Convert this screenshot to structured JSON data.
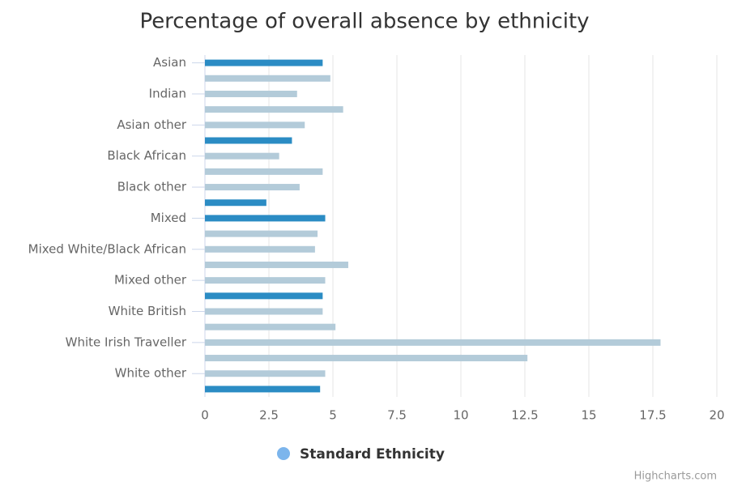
{
  "chart_data": {
    "type": "bar",
    "orientation": "horizontal",
    "title": "Percentage of overall absence by ethnicity",
    "categories": [
      "Asian",
      null,
      "Indian",
      null,
      "Asian other",
      null,
      "Black African",
      null,
      "Black other",
      null,
      "Mixed",
      null,
      "Mixed White/Black African",
      null,
      "Mixed other",
      null,
      "White British",
      null,
      "White Irish Traveller",
      null,
      "White other",
      null
    ],
    "series": [
      {
        "name": "Standard Ethnicity",
        "color": "#7cb5ec",
        "colors": [
          "#2b8cc4",
          "#b3cbd9",
          "#b3cbd9",
          "#b3cbd9",
          "#b3cbd9",
          "#2b8cc4",
          "#b3cbd9",
          "#b3cbd9",
          "#b3cbd9",
          "#2b8cc4",
          "#2b8cc4",
          "#b3cbd9",
          "#b3cbd9",
          "#b3cbd9",
          "#b3cbd9",
          "#2b8cc4",
          "#b3cbd9",
          "#b3cbd9",
          "#b3cbd9",
          "#b3cbd9",
          "#b3cbd9",
          "#2b8cc4"
        ],
        "values": [
          4.6,
          4.9,
          3.6,
          5.4,
          3.9,
          3.4,
          2.9,
          4.6,
          3.7,
          2.4,
          4.7,
          4.4,
          4.3,
          5.6,
          4.7,
          4.6,
          4.6,
          5.1,
          17.8,
          12.6,
          4.7,
          4.5
        ]
      }
    ],
    "xlim": [
      0,
      20
    ],
    "xticks": [
      0,
      2.5,
      5,
      7.5,
      10,
      12.5,
      15,
      17.5,
      20
    ],
    "grid": true,
    "credits": "Highcharts.com"
  }
}
